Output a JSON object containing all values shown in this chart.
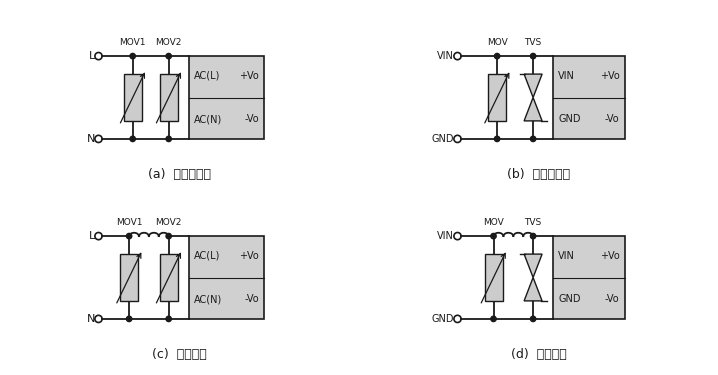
{
  "bg_color": "#ffffff",
  "line_color": "#1a1a1a",
  "box_color": "#d0d0d0",
  "lw": 1.3,
  "captions": [
    "(a)  不恰当应用",
    "(b)  不恰当应用",
    "(c)  推荐应用",
    "(d)  推荐应用"
  ]
}
